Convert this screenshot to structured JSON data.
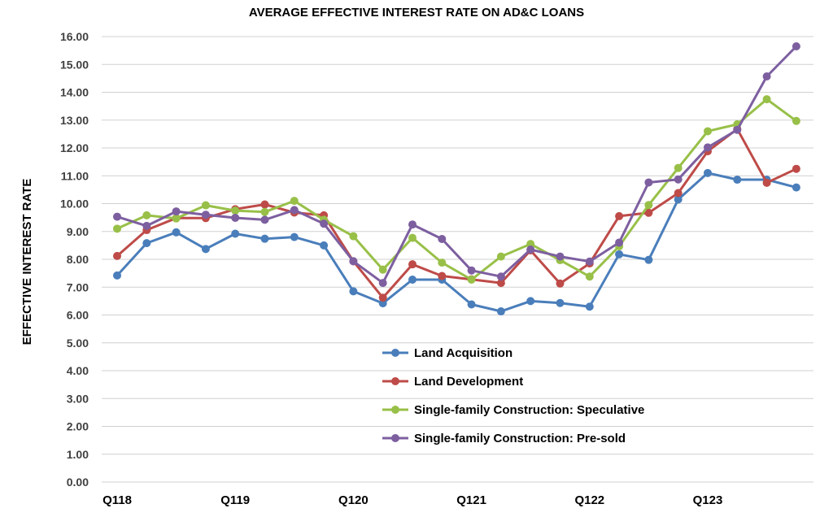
{
  "chart_data": {
    "type": "line",
    "title": "AVERAGE EFFECTIVE INTEREST RATE ON AD&C LOANS",
    "ylabel": "EFFECTIVE INTEREST RATE",
    "ylim": [
      0,
      16
    ],
    "yticks": [
      "0.00",
      "1.00",
      "2.00",
      "3.00",
      "4.00",
      "5.00",
      "6.00",
      "7.00",
      "8.00",
      "9.00",
      "10.00",
      "11.00",
      "12.00",
      "13.00",
      "14.00",
      "15.00",
      "16.00"
    ],
    "categories": [
      "Q118",
      "Q218",
      "Q318",
      "Q418",
      "Q119",
      "Q219",
      "Q319",
      "Q419",
      "Q120",
      "Q220",
      "Q320",
      "Q420",
      "Q121",
      "Q221",
      "Q321",
      "Q421",
      "Q122",
      "Q222",
      "Q322",
      "Q422",
      "Q123",
      "Q223",
      "Q323",
      "Q423"
    ],
    "x_tick_labels": [
      "Q118",
      "Q119",
      "Q120",
      "Q121",
      "Q122",
      "Q123"
    ],
    "grid": true,
    "legend_position": "center-bottom",
    "series": [
      {
        "name": "Land Acquisition",
        "color": "#4a7ebb",
        "values": [
          7.42,
          8.58,
          8.97,
          8.37,
          8.92,
          8.74,
          8.8,
          8.5,
          6.85,
          6.42,
          7.27,
          7.27,
          6.38,
          6.13,
          6.5,
          6.43,
          6.3,
          8.18,
          7.98,
          10.15,
          11.1,
          10.86,
          10.86,
          10.58
        ]
      },
      {
        "name": "Land Development",
        "color": "#be4b48",
        "values": [
          8.12,
          9.05,
          9.48,
          9.48,
          9.8,
          9.97,
          9.68,
          9.58,
          7.93,
          6.62,
          7.82,
          7.4,
          7.28,
          7.15,
          8.32,
          7.13,
          7.85,
          9.55,
          9.67,
          10.38,
          11.88,
          12.68,
          10.75,
          11.25
        ]
      },
      {
        "name": "Single-family Construction: Speculative",
        "color": "#98c048",
        "values": [
          9.1,
          9.58,
          9.47,
          9.94,
          9.75,
          9.7,
          10.1,
          9.42,
          8.83,
          7.63,
          8.77,
          7.88,
          7.27,
          8.1,
          8.55,
          7.97,
          7.38,
          8.47,
          9.95,
          11.28,
          12.6,
          12.85,
          13.75,
          12.97
        ]
      },
      {
        "name": "Single-family Construction: Pre-sold",
        "color": "#7d5fa0",
        "values": [
          9.53,
          9.2,
          9.72,
          9.6,
          9.49,
          9.42,
          9.77,
          9.28,
          7.93,
          7.15,
          9.25,
          8.73,
          7.6,
          7.38,
          8.35,
          8.1,
          7.92,
          8.6,
          10.76,
          10.87,
          12.02,
          12.65,
          14.57,
          15.65
        ]
      }
    ]
  }
}
